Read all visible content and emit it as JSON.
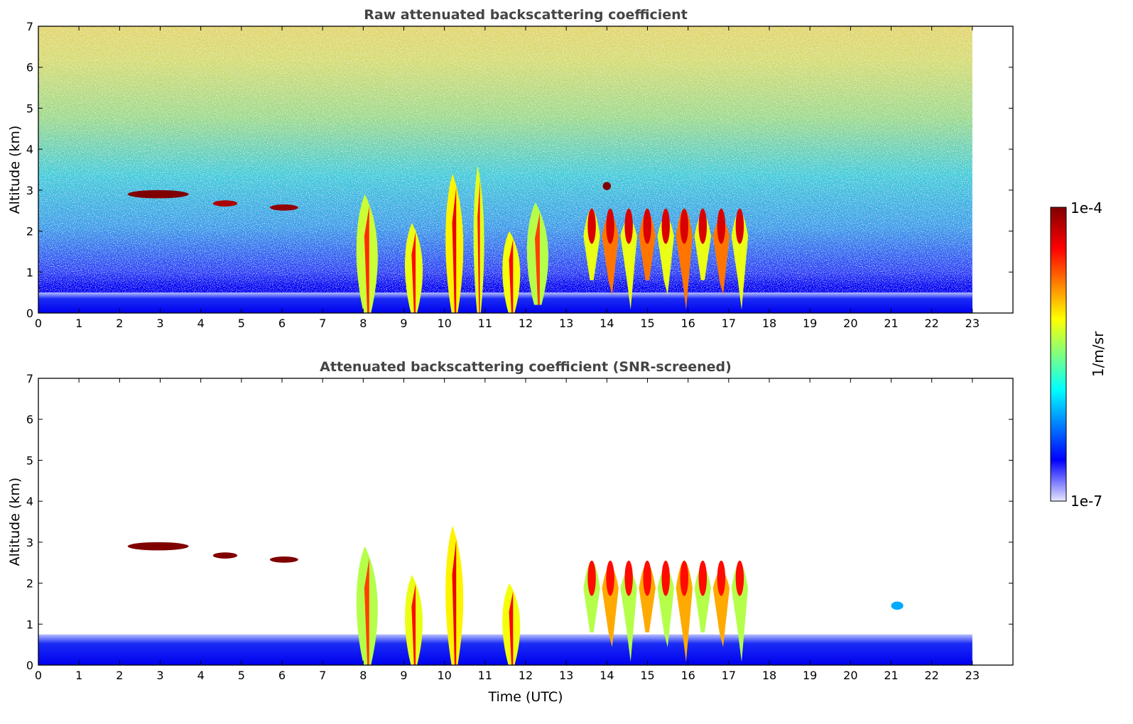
{
  "chart_data": [
    {
      "type": "heatmap",
      "title": "Raw attenuated backscattering coefficient",
      "xlabel": "",
      "ylabel": "Altitude (km)",
      "xlim": [
        0,
        24
      ],
      "ylim": [
        0,
        7
      ],
      "x_ticks": [
        "0",
        "1",
        "2",
        "3",
        "4",
        "5",
        "6",
        "7",
        "8",
        "9",
        "10",
        "11",
        "12",
        "13",
        "14",
        "15",
        "16",
        "17",
        "18",
        "19",
        "20",
        "21",
        "22",
        "23"
      ],
      "y_ticks": [
        "0",
        "1",
        "2",
        "3",
        "4",
        "5",
        "6",
        "7"
      ],
      "data_extent_hours": [
        0,
        23
      ],
      "regions": [
        {
          "kind": "boundary_layer",
          "x": [
            0,
            23
          ],
          "y": [
            0,
            0.5
          ],
          "level": 0.12
        },
        {
          "kind": "cloud_layer",
          "x": [
            2.2,
            3.7
          ],
          "y": [
            2.8,
            3.0
          ],
          "level": 1.0
        },
        {
          "kind": "cloud_layer",
          "x": [
            4.3,
            4.9
          ],
          "y": [
            2.6,
            2.75
          ],
          "level": 0.95
        },
        {
          "kind": "cloud_layer",
          "x": [
            5.7,
            6.4
          ],
          "y": [
            2.5,
            2.65
          ],
          "level": 0.98
        },
        {
          "kind": "precipitation",
          "x": [
            7.8,
            8.4
          ],
          "y": [
            0,
            2.9
          ],
          "level": 0.82
        },
        {
          "kind": "precipitation",
          "x": [
            9.0,
            9.5
          ],
          "y": [
            0,
            2.2
          ],
          "level": 0.85
        },
        {
          "kind": "precipitation",
          "x": [
            10.0,
            10.5
          ],
          "y": [
            0,
            3.4
          ],
          "level": 0.88
        },
        {
          "kind": "precipitation",
          "x": [
            10.7,
            11.0
          ],
          "y": [
            0,
            3.6
          ],
          "level": 0.84
        },
        {
          "kind": "precipitation",
          "x": [
            11.4,
            11.9
          ],
          "y": [
            0,
            2.0
          ],
          "level": 0.86
        },
        {
          "kind": "precipitation",
          "x": [
            12.0,
            12.6
          ],
          "y": [
            0.2,
            2.7
          ],
          "level": 0.8
        },
        {
          "kind": "cloud_field",
          "x": [
            13.4,
            17.5
          ],
          "y": [
            0.8,
            3.2
          ],
          "level": 0.8
        },
        {
          "kind": "cloud_layer",
          "x": [
            13.9,
            14.1
          ],
          "y": [
            3.0,
            3.2
          ],
          "level": 1.0
        }
      ]
    },
    {
      "type": "heatmap",
      "title": "Attenuated backscattering coefficient (SNR-screened)",
      "xlabel": "Time (UTC)",
      "ylabel": "Altitude (km)",
      "xlim": [
        0,
        24
      ],
      "ylim": [
        0,
        7
      ],
      "x_ticks": [
        "0",
        "1",
        "2",
        "3",
        "4",
        "5",
        "6",
        "7",
        "8",
        "9",
        "10",
        "11",
        "12",
        "13",
        "14",
        "15",
        "16",
        "17",
        "18",
        "19",
        "20",
        "21",
        "22",
        "23"
      ],
      "y_ticks": [
        "0",
        "1",
        "2",
        "3",
        "4",
        "5",
        "6",
        "7"
      ],
      "data_extent_hours": [
        0,
        23
      ],
      "regions": [
        {
          "kind": "boundary_layer",
          "x": [
            0,
            23
          ],
          "y": [
            0,
            0.75
          ],
          "level": 0.1
        },
        {
          "kind": "cloud_layer",
          "x": [
            2.2,
            3.7
          ],
          "y": [
            2.8,
            3.0
          ],
          "level": 1.0
        },
        {
          "kind": "cloud_layer",
          "x": [
            4.3,
            4.9
          ],
          "y": [
            2.6,
            2.75
          ],
          "level": 1.0
        },
        {
          "kind": "cloud_layer",
          "x": [
            5.7,
            6.4
          ],
          "y": [
            2.5,
            2.65
          ],
          "level": 1.0
        },
        {
          "kind": "precipitation",
          "x": [
            7.8,
            8.4
          ],
          "y": [
            0,
            2.9
          ],
          "level": 0.8
        },
        {
          "kind": "precipitation",
          "x": [
            9.0,
            9.5
          ],
          "y": [
            0,
            2.2
          ],
          "level": 0.85
        },
        {
          "kind": "precipitation",
          "x": [
            10.0,
            10.5
          ],
          "y": [
            0,
            3.4
          ],
          "level": 0.88
        },
        {
          "kind": "precipitation",
          "x": [
            11.4,
            11.9
          ],
          "y": [
            0,
            2.0
          ],
          "level": 0.86
        },
        {
          "kind": "cloud_field",
          "x": [
            13.4,
            17.5
          ],
          "y": [
            0.8,
            3.2
          ],
          "level": 0.75
        },
        {
          "kind": "cloud_layer",
          "x": [
            21.0,
            21.3
          ],
          "y": [
            1.35,
            1.55
          ],
          "level": 0.3
        }
      ]
    }
  ],
  "colorbar": {
    "label": "1/m/sr",
    "min_label": "1e-7",
    "max_label": "1e-4",
    "colormap": "jet",
    "scale": "log",
    "colors": [
      "#e6e6ff",
      "#0000ff",
      "#00ffff",
      "#ffff00",
      "#ff0000",
      "#800000"
    ]
  }
}
